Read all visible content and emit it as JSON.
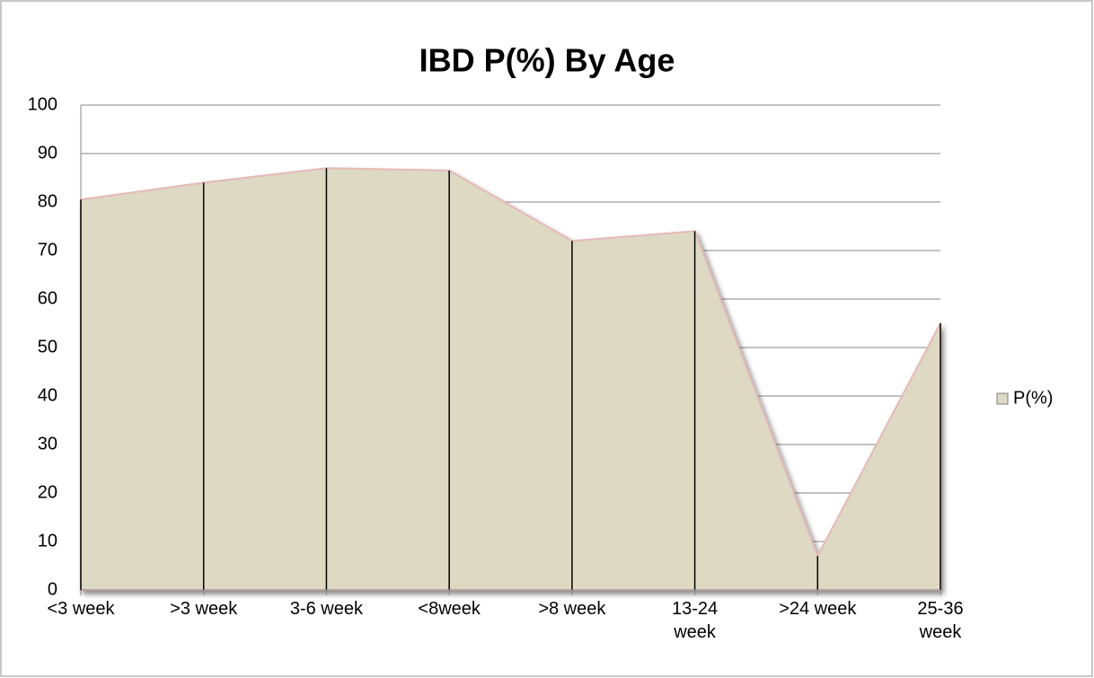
{
  "chart_data": {
    "type": "area",
    "title": "IBD P(%) By Age",
    "categories": [
      "<3 week",
      ">3 week",
      "3-6 week",
      "<8week",
      ">8 week",
      "13-24 week",
      ">24 week",
      "25-36 week"
    ],
    "series": [
      {
        "name": "P(%)",
        "color": "#ddd9c3",
        "values": [
          80.5,
          84,
          87,
          86.5,
          72,
          74,
          7,
          55
        ]
      }
    ],
    "ylim": [
      0,
      100
    ],
    "yticks": [
      0,
      10,
      20,
      30,
      40,
      50,
      60,
      70,
      80,
      90,
      100
    ],
    "grid": true,
    "legend": "right",
    "drop_lines": true
  }
}
